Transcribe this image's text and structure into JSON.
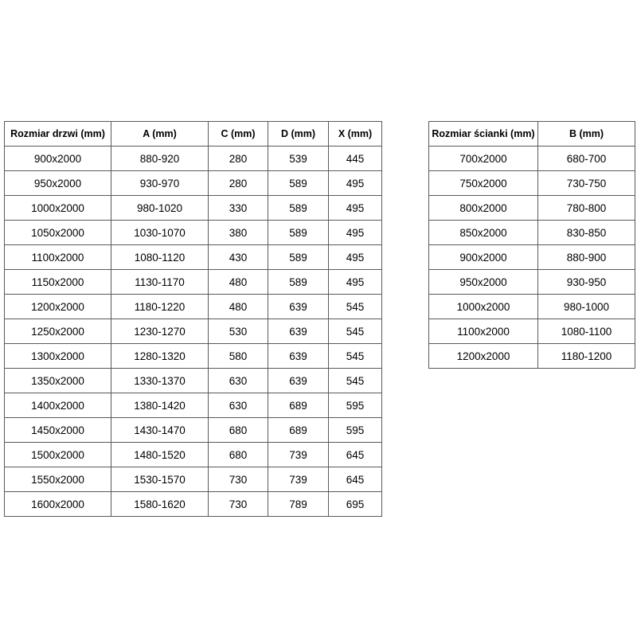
{
  "colors": {
    "background": "#ffffff",
    "border": "#595959",
    "text": "#000000"
  },
  "doors_table": {
    "headers": [
      "Rozmiar drzwi (mm)",
      "A (mm)",
      "C (mm)",
      "D (mm)",
      "X (mm)"
    ],
    "rows": [
      [
        "900x2000",
        "880-920",
        "280",
        "539",
        "445"
      ],
      [
        "950x2000",
        "930-970",
        "280",
        "589",
        "495"
      ],
      [
        "1000x2000",
        "980-1020",
        "330",
        "589",
        "495"
      ],
      [
        "1050x2000",
        "1030-1070",
        "380",
        "589",
        "495"
      ],
      [
        "1100x2000",
        "1080-1120",
        "430",
        "589",
        "495"
      ],
      [
        "1150x2000",
        "1130-1170",
        "480",
        "589",
        "495"
      ],
      [
        "1200x2000",
        "1180-1220",
        "480",
        "639",
        "545"
      ],
      [
        "1250x2000",
        "1230-1270",
        "530",
        "639",
        "545"
      ],
      [
        "1300x2000",
        "1280-1320",
        "580",
        "639",
        "545"
      ],
      [
        "1350x2000",
        "1330-1370",
        "630",
        "639",
        "545"
      ],
      [
        "1400x2000",
        "1380-1420",
        "630",
        "689",
        "595"
      ],
      [
        "1450x2000",
        "1430-1470",
        "680",
        "689",
        "595"
      ],
      [
        "1500x2000",
        "1480-1520",
        "680",
        "739",
        "645"
      ],
      [
        "1550x2000",
        "1530-1570",
        "730",
        "739",
        "645"
      ],
      [
        "1600x2000",
        "1580-1620",
        "730",
        "789",
        "695"
      ]
    ]
  },
  "walls_table": {
    "headers": [
      "Rozmiar ścianki (mm)",
      "B (mm)"
    ],
    "rows": [
      [
        "700x2000",
        "680-700"
      ],
      [
        "750x2000",
        "730-750"
      ],
      [
        "800x2000",
        "780-800"
      ],
      [
        "850x2000",
        "830-850"
      ],
      [
        "900x2000",
        "880-900"
      ],
      [
        "950x2000",
        "930-950"
      ],
      [
        "1000x2000",
        "980-1000"
      ],
      [
        "1100x2000",
        "1080-1100"
      ],
      [
        "1200x2000",
        "1180-1200"
      ]
    ]
  }
}
